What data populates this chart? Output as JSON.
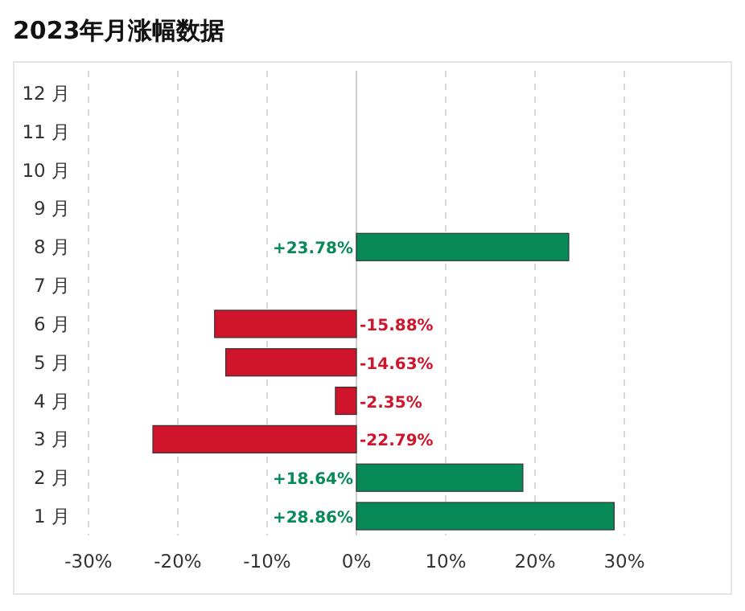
{
  "chart_data": {
    "type": "bar",
    "orientation": "horizontal",
    "title": "2023年月涨幅数据",
    "categories": [
      "12 月",
      "11 月",
      "10 月",
      "9 月",
      "8 月",
      "7 月",
      "6 月",
      "5 月",
      "4 月",
      "3 月",
      "2 月",
      "1 月"
    ],
    "values": [
      null,
      null,
      null,
      null,
      23.78,
      null,
      -15.88,
      -14.63,
      -2.35,
      -22.79,
      18.64,
      28.86
    ],
    "colors": [
      null,
      null,
      null,
      null,
      "#078a57",
      null,
      "#d0142c",
      "#d0142c",
      "#d0142c",
      "#d0142c",
      "#078a57",
      "#078a57"
    ],
    "value_labels": [
      null,
      null,
      null,
      null,
      "+23.78%",
      null,
      "-15.88%",
      "-14.63%",
      "-2.35%",
      "-22.79%",
      "+18.64%",
      "+28.86%"
    ],
    "xlim": [
      -30,
      30
    ],
    "xticks": [
      {
        "value": -30,
        "label": "-30%"
      },
      {
        "value": -20,
        "label": "-20%"
      },
      {
        "value": -10,
        "label": "-10%"
      },
      {
        "value": 0,
        "label": "0%"
      },
      {
        "value": 10,
        "label": "10%"
      },
      {
        "value": 20,
        "label": "20%"
      },
      {
        "value": 30,
        "label": "30%"
      }
    ],
    "grid": "x"
  }
}
